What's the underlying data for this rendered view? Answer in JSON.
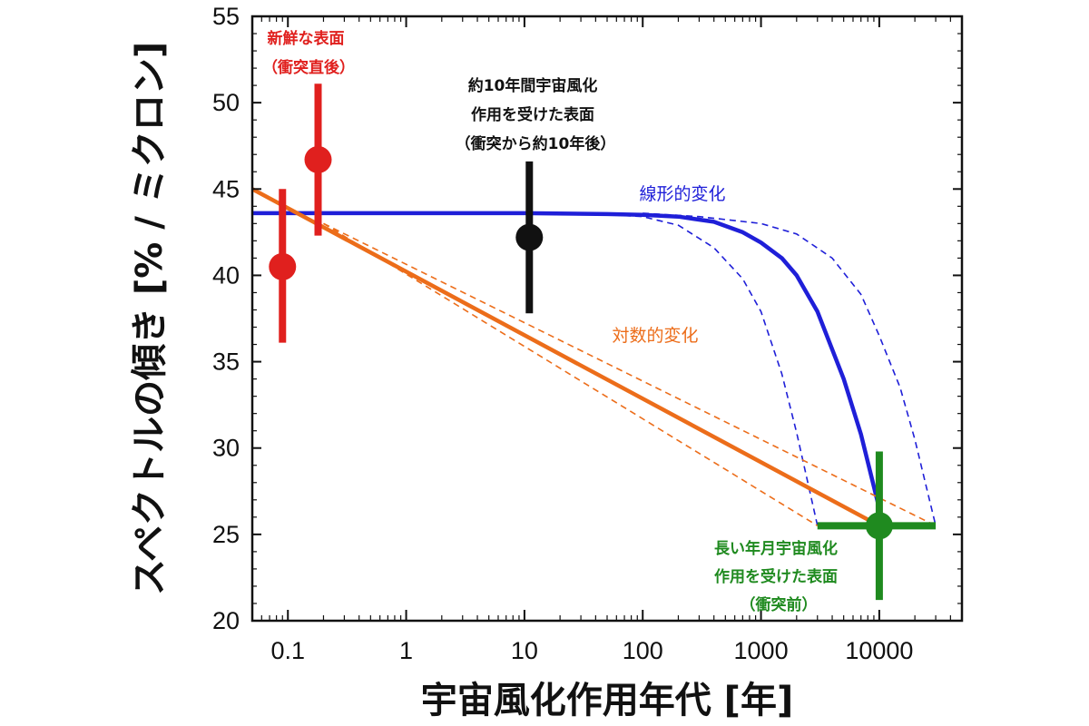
{
  "chart_data": {
    "type": "scatter",
    "xlabel": "宇宙風化作用年代 [年]",
    "ylabel": "スペクトルの傾き [% / ミクロン]",
    "xscale": "log",
    "xlim": [
      0.05,
      50000
    ],
    "ylim": [
      20,
      55
    ],
    "grid": false,
    "x_ticks": [
      {
        "value": 0.1,
        "label": "0.1"
      },
      {
        "value": 1,
        "label": "1"
      },
      {
        "value": 10,
        "label": "10"
      },
      {
        "value": 100,
        "label": "100"
      },
      {
        "value": 1000,
        "label": "1000"
      },
      {
        "value": 10000,
        "label": "10000"
      }
    ],
    "y_ticks": [
      {
        "value": 20,
        "label": "20"
      },
      {
        "value": 25,
        "label": "25"
      },
      {
        "value": 30,
        "label": "30"
      },
      {
        "value": 35,
        "label": "35"
      },
      {
        "value": 40,
        "label": "40"
      },
      {
        "value": 45,
        "label": "45"
      },
      {
        "value": 50,
        "label": "50"
      },
      {
        "value": 55,
        "label": "55"
      }
    ],
    "points": [
      {
        "x": 0.09,
        "y": 40.5,
        "yerr": [
          36.1,
          45.0
        ],
        "color": "#e0201e"
      },
      {
        "x": 0.18,
        "y": 46.7,
        "yerr": [
          42.3,
          51.1
        ],
        "color": "#e0201e"
      },
      {
        "x": 11,
        "y": 42.2,
        "yerr": [
          37.8,
          46.6
        ],
        "color": "#111111"
      },
      {
        "x": 10000,
        "y": 25.5,
        "yerr": [
          21.2,
          29.8
        ],
        "xerr": [
          3000,
          30000
        ],
        "color": "#1f8a1f"
      }
    ],
    "series": [
      {
        "name": "線形的変化",
        "kind": "solid",
        "color": "#1f1fd8",
        "x": [
          0.05,
          1,
          10,
          50,
          100,
          200,
          400,
          700,
          1000,
          1500,
          2000,
          3000,
          5000,
          7000,
          10000
        ],
        "y": [
          43.6,
          43.6,
          43.6,
          43.55,
          43.5,
          43.4,
          43.1,
          42.5,
          41.9,
          41.0,
          40.0,
          37.9,
          34.0,
          30.8,
          26.5
        ]
      },
      {
        "name": "",
        "kind": "dashed",
        "color": "#1f1fd8",
        "x": [
          30,
          100,
          200,
          400,
          700,
          1000,
          1500,
          2000,
          3000
        ],
        "y": [
          43.6,
          43.4,
          42.9,
          41.6,
          39.8,
          37.9,
          34.3,
          30.9,
          25.5
        ]
      },
      {
        "name": "",
        "kind": "dashed",
        "color": "#1f1fd8",
        "x": [
          100,
          300,
          1000,
          2000,
          4000,
          7000,
          10000,
          15000,
          20000,
          30000
        ],
        "y": [
          43.6,
          43.4,
          43.0,
          42.4,
          41.0,
          38.9,
          36.5,
          33.5,
          30.5,
          25.5
        ]
      },
      {
        "name": "対数的変化",
        "kind": "solid",
        "color": "#ec6d1a",
        "x": [
          0.05,
          10000
        ],
        "y": [
          45.0,
          25.5
        ]
      },
      {
        "name": "",
        "kind": "dashed",
        "color": "#ec6d1a",
        "x": [
          0.2,
          3000
        ],
        "y": [
          43.0,
          25.5
        ]
      },
      {
        "name": "",
        "kind": "dashed",
        "color": "#ec6d1a",
        "x": [
          0.2,
          30000
        ],
        "y": [
          43.0,
          25.5
        ]
      }
    ],
    "annotations": [
      {
        "lines": [
          "新鮮な表面",
          "（衝突直後）"
        ],
        "color": "#e0201e"
      },
      {
        "lines": [
          "約10年間宇宙風化",
          "作用を受けた表面",
          "（衝突から約10年後）"
        ],
        "color": "#111111"
      },
      {
        "lines": [
          "長い年月宇宙風化",
          "作用を受けた表面",
          "（衝突前）"
        ],
        "color": "#1f8a1f"
      }
    ],
    "curve_labels": [
      {
        "text": "線形的変化",
        "color": "#1f1fd8"
      },
      {
        "text": "対数的変化",
        "color": "#ec6d1a"
      }
    ]
  }
}
